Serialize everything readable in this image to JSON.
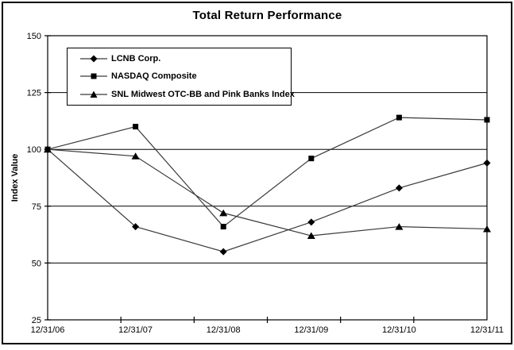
{
  "chart_data": {
    "type": "line",
    "title": "Total Return Performance",
    "xlabel": "",
    "ylabel": "Index Value",
    "categories": [
      "12/31/06",
      "12/31/07",
      "12/31/08",
      "12/31/09",
      "12/31/10",
      "12/31/11"
    ],
    "series": [
      {
        "name": "LCNB Corp.",
        "marker": "diamond",
        "values": [
          100,
          66,
          55,
          68,
          83,
          94
        ]
      },
      {
        "name": "NASDAQ Composite",
        "marker": "square",
        "values": [
          100,
          110,
          66,
          96,
          114,
          113
        ]
      },
      {
        "name": "SNL Midwest OTC-BB and Pink Banks Index",
        "marker": "triangle",
        "values": [
          100,
          97,
          72,
          62,
          66,
          65
        ]
      }
    ],
    "ylim": [
      25,
      150
    ],
    "yticks": [
      25,
      50,
      75,
      100,
      125,
      150
    ],
    "grid": true,
    "legend_position": "inside-top-left",
    "colors": {
      "background": "#ffffff",
      "border": "#000000",
      "line": "#3a3a3a",
      "marker": "#000000",
      "grid": "#000000"
    }
  }
}
